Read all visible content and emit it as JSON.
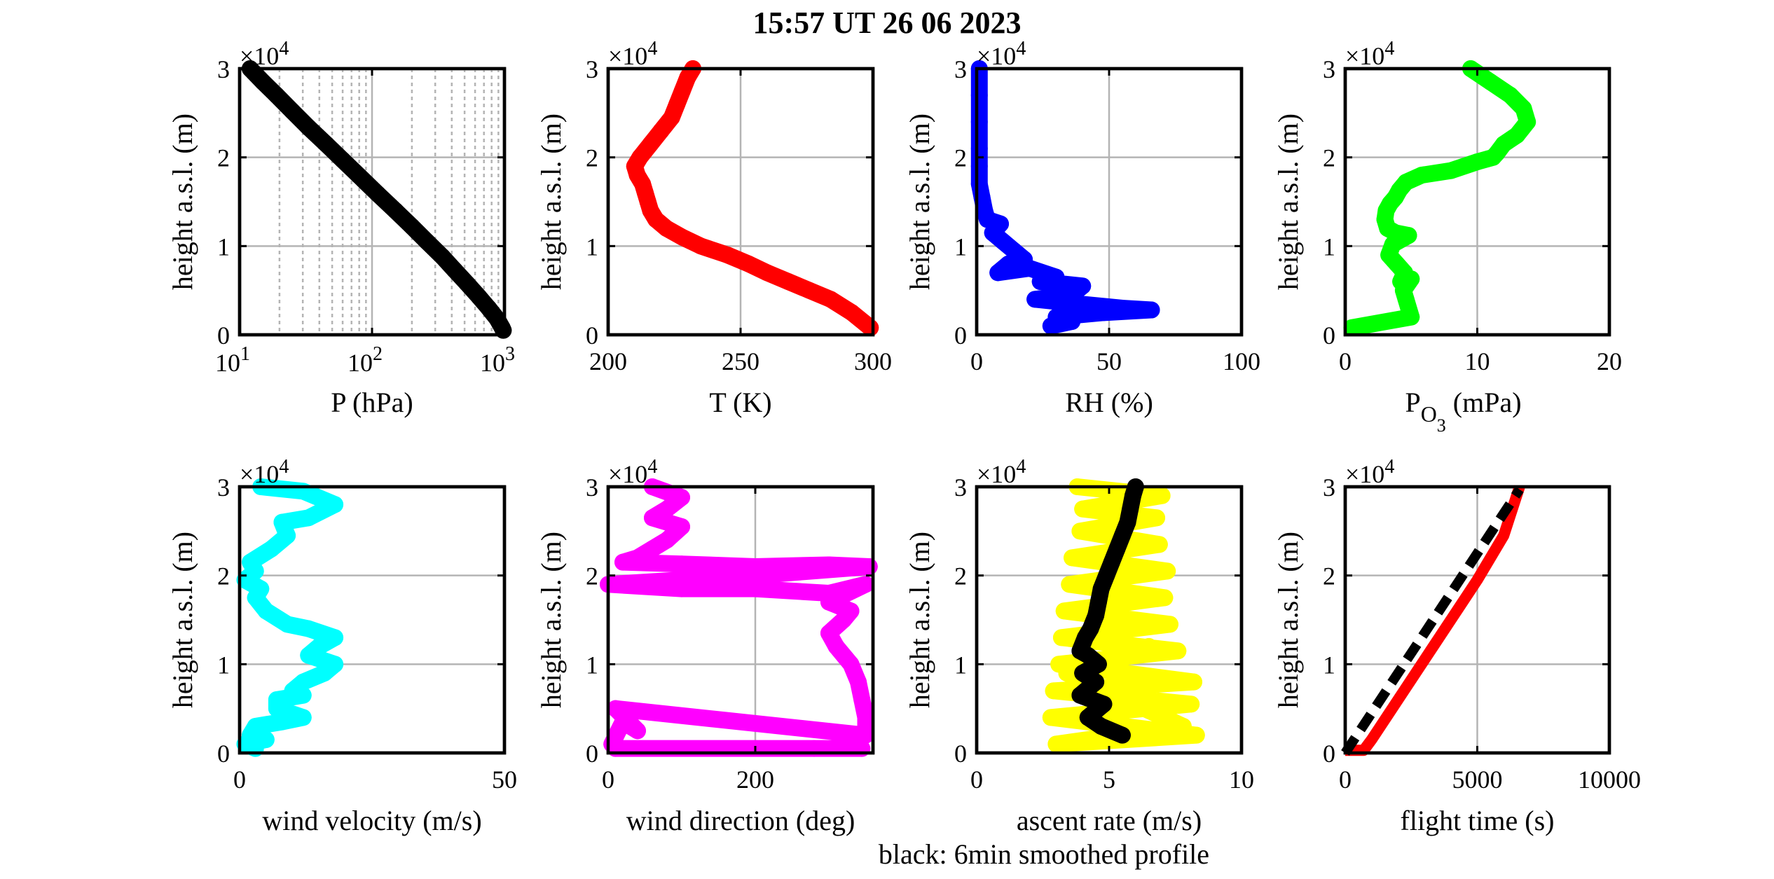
{
  "figure": {
    "title": "15:57 UT  26 06 2023",
    "note": "black: 6min smoothed profile"
  },
  "chart_data": [
    {
      "type": "scatter",
      "name": "pressure-profile",
      "xlabel": "P (hPa)",
      "ylabel": "height a.s.l. (m)",
      "y_exponent": "×10^4",
      "xscale": "log",
      "xlim": [
        10,
        1000
      ],
      "ylim": [
        0,
        30000
      ],
      "xticks": [
        10,
        100,
        1000
      ],
      "xticklabels": [
        {
          "base": "10",
          "exp": "1"
        },
        {
          "base": "10",
          "exp": "2"
        },
        {
          "base": "10",
          "exp": "3"
        }
      ],
      "yticks": [
        0,
        10000,
        20000,
        30000
      ],
      "yticklabels": [
        "0",
        "1",
        "2",
        "3"
      ],
      "grid": true,
      "minor_grid": true,
      "series": [
        {
          "color": "#000000",
          "x": [
            12,
            15,
            19,
            25,
            33,
            45,
            60,
            80,
            110,
            150,
            200,
            260,
            340,
            420,
            520,
            640,
            760,
            880,
            960,
            980
          ],
          "y": [
            30000,
            28500,
            27000,
            25200,
            23400,
            21500,
            19700,
            17900,
            15900,
            14000,
            12200,
            10500,
            8800,
            7300,
            5800,
            4300,
            3000,
            1800,
            800,
            500
          ]
        }
      ]
    },
    {
      "type": "scatter",
      "name": "temperature-profile",
      "xlabel": "T (K)",
      "ylabel": "height a.s.l. (m)",
      "y_exponent": "×10^4",
      "xlim": [
        200,
        300
      ],
      "ylim": [
        0,
        30000
      ],
      "xticks": [
        200,
        250,
        300
      ],
      "xticklabels": [
        "200",
        "250",
        "300"
      ],
      "yticks": [
        0,
        10000,
        20000,
        30000
      ],
      "yticklabels": [
        "0",
        "1",
        "2",
        "3"
      ],
      "grid": true,
      "series": [
        {
          "color": "#ff0000",
          "x": [
            232,
            230,
            228,
            226,
            224,
            220,
            216,
            212,
            210,
            211,
            213,
            214,
            215,
            216,
            218,
            222,
            228,
            235,
            245,
            253,
            260,
            268,
            276,
            284,
            292,
            299
          ],
          "y": [
            30000,
            29000,
            27500,
            26000,
            24500,
            23000,
            21500,
            20000,
            19000,
            18000,
            17000,
            16000,
            15000,
            14000,
            13000,
            12000,
            11000,
            10000,
            9000,
            8000,
            7000,
            6000,
            5000,
            4000,
            2500,
            800
          ]
        }
      ]
    },
    {
      "type": "scatter",
      "name": "humidity-profile",
      "xlabel": "RH (%)",
      "ylabel": "height a.s.l. (m)",
      "y_exponent": "×10^4",
      "xlim": [
        0,
        100
      ],
      "ylim": [
        0,
        30000
      ],
      "xticks": [
        0,
        50,
        100
      ],
      "xticklabels": [
        "0",
        "50",
        "100"
      ],
      "yticks": [
        0,
        10000,
        20000,
        30000
      ],
      "yticklabels": [
        "0",
        "1",
        "2",
        "3"
      ],
      "grid": true,
      "series": [
        {
          "color": "#0000ff",
          "x": [
            1,
            1,
            1,
            1,
            1,
            1,
            2,
            3,
            4,
            9,
            6,
            10,
            14,
            18,
            12,
            8,
            20,
            30,
            24,
            40,
            36,
            22,
            38,
            55,
            66,
            48,
            30,
            36,
            28
          ],
          "y": [
            30000,
            27000,
            24000,
            21000,
            19000,
            17000,
            15500,
            14000,
            13000,
            12500,
            11500,
            10500,
            9500,
            8500,
            8000,
            7000,
            7500,
            6500,
            6000,
            5500,
            4500,
            4000,
            3500,
            3000,
            2800,
            2500,
            2000,
            1500,
            1000
          ]
        }
      ]
    },
    {
      "type": "scatter",
      "name": "ozone-profile",
      "xlabel": "P",
      "xlabel_sub": "O",
      "xlabel_subsub": "3",
      "xlabel_unit": " (mPa)",
      "ylabel": "height a.s.l. (m)",
      "y_exponent": "×10^4",
      "xlim": [
        0,
        20
      ],
      "ylim": [
        0,
        30000
      ],
      "xticks": [
        0,
        10,
        20
      ],
      "xticklabels": [
        "0",
        "10",
        "20"
      ],
      "yticks": [
        0,
        10000,
        20000,
        30000
      ],
      "yticklabels": [
        "0",
        "1",
        "2",
        "3"
      ],
      "grid": true,
      "series": [
        {
          "color": "#00ff00",
          "x": [
            9.5,
            11,
            12.5,
            13.5,
            13.8,
            13,
            12,
            11.5,
            11.2,
            10,
            8,
            5.8,
            4.6,
            4.1,
            3.8,
            3.4,
            3.1,
            3,
            3.2,
            3.8,
            4.8,
            3.6,
            3.3,
            3.9,
            4.5,
            4.2,
            5,
            4.4,
            4.6,
            5,
            0.5
          ],
          "y": [
            30000,
            28500,
            27000,
            25500,
            24000,
            22500,
            21500,
            20500,
            20000,
            19500,
            18500,
            18000,
            17200,
            16300,
            15500,
            14800,
            14000,
            13000,
            12000,
            11500,
            11200,
            10200,
            9000,
            8000,
            7000,
            6000,
            6300,
            5000,
            4000,
            2000,
            800
          ]
        }
      ]
    },
    {
      "type": "scatter",
      "name": "wind-velocity-profile",
      "xlabel": "wind velocity (m/s)",
      "ylabel": "height a.s.l. (m)",
      "y_exponent": "×10^4",
      "xlim": [
        0,
        50
      ],
      "ylim": [
        0,
        30000
      ],
      "xticks": [
        0,
        50
      ],
      "xticklabels": [
        "0",
        "50"
      ],
      "yticks": [
        0,
        10000,
        20000,
        30000
      ],
      "yticklabels": [
        "0",
        "1",
        "2",
        "3"
      ],
      "grid": true,
      "series": [
        {
          "color": "#00ffff",
          "x": [
            4,
            12,
            18,
            13,
            8,
            9,
            6,
            2,
            3,
            1,
            4,
            3,
            5,
            9,
            13,
            18,
            15,
            13,
            18,
            16,
            12,
            10,
            12,
            7,
            7,
            12,
            8,
            3,
            2,
            5,
            1,
            3
          ],
          "y": [
            30000,
            29500,
            28000,
            26500,
            26000,
            24500,
            23000,
            21500,
            20500,
            19500,
            18500,
            17500,
            16000,
            14500,
            14000,
            13000,
            12000,
            11000,
            10000,
            9000,
            8000,
            7000,
            6500,
            6000,
            5000,
            4000,
            3500,
            3000,
            2000,
            1500,
            1000,
            500
          ]
        }
      ]
    },
    {
      "type": "scatter",
      "name": "wind-direction-profile",
      "xlabel": "wind direction (deg)",
      "ylabel": "height a.s.l. (m)",
      "y_exponent": "×10^4",
      "xlim": [
        0,
        360
      ],
      "ylim": [
        0,
        30000
      ],
      "xticks": [
        0,
        200
      ],
      "xticklabels": [
        "0",
        "200"
      ],
      "yticks": [
        0,
        10000,
        20000,
        30000
      ],
      "yticklabels": [
        "0",
        "1",
        "2",
        "3"
      ],
      "grid": true,
      "series": [
        {
          "color": "#ff00ff",
          "x": [
            60,
            100,
            80,
            60,
            100,
            80,
            60,
            40,
            20,
            100,
            200,
            300,
            355,
            200,
            100,
            0,
            100,
            200,
            300,
            350,
            300,
            330,
            320,
            300,
            310,
            330,
            340,
            345,
            350,
            350,
            10,
            40,
            20,
            5,
            10,
            280,
            345
          ],
          "y": [
            30000,
            28800,
            27500,
            26500,
            25500,
            24000,
            23000,
            22000,
            21500,
            21300,
            21000,
            21200,
            21000,
            20000,
            19500,
            19000,
            18500,
            18500,
            18000,
            19000,
            17000,
            16000,
            15000,
            13500,
            12000,
            10000,
            8000,
            6000,
            4000,
            2000,
            5000,
            2500,
            3500,
            1000,
            500,
            500,
            500
          ]
        }
      ]
    },
    {
      "type": "scatter",
      "name": "ascent-rate-profile",
      "xlabel": "ascent rate (m/s)",
      "ylabel": "height a.s.l. (m)",
      "y_exponent": "×10^4",
      "xlim": [
        0,
        10
      ],
      "ylim": [
        0,
        30000
      ],
      "xticks": [
        0,
        5,
        10
      ],
      "xticklabels": [
        "0",
        "5",
        "10"
      ],
      "yticks": [
        0,
        10000,
        20000,
        30000
      ],
      "yticklabels": [
        "0",
        "1",
        "2",
        "3"
      ],
      "grid": true,
      "series": [
        {
          "color": "#ffff00",
          "x": [
            3.8,
            7.0,
            4.0,
            6.8,
            3.9,
            6.9,
            3.6,
            7.2,
            3.5,
            7.1,
            3.3,
            7.3,
            3.2,
            7.6,
            3.1,
            8.2,
            2.9,
            8.1,
            2.8,
            8.3,
            3.0,
            7.8,
            3.4,
            6.5
          ],
          "y": [
            30000,
            29000,
            27500,
            26500,
            25000,
            23500,
            22000,
            20500,
            19000,
            17500,
            16000,
            14500,
            13000,
            11500,
            10000,
            8000,
            7000,
            5500,
            4000,
            2000,
            1000,
            3000,
            9000,
            12000
          ]
        },
        {
          "color": "#000000",
          "x": [
            6.0,
            5.9,
            5.8,
            5.7,
            5.5,
            5.3,
            5.1,
            4.9,
            4.7,
            4.6,
            4.5,
            4.3,
            4.1,
            3.9,
            4.2,
            4.6,
            4.0,
            4.5,
            3.9,
            4.8,
            4.2,
            4.7,
            5.5
          ],
          "y": [
            30000,
            29000,
            27500,
            26000,
            24500,
            23000,
            21500,
            20000,
            18500,
            17000,
            15500,
            14000,
            13000,
            11500,
            11000,
            10000,
            9000,
            8000,
            6500,
            5500,
            4000,
            3000,
            2000
          ]
        }
      ]
    },
    {
      "type": "line",
      "name": "flight-time-profile",
      "xlabel": "flight time (s)",
      "ylabel": "height a.s.l. (m)",
      "y_exponent": "×10^4",
      "xlim": [
        0,
        10000
      ],
      "ylim": [
        0,
        30000
      ],
      "xticks": [
        0,
        5000,
        10000
      ],
      "xticklabels": [
        "0",
        "5000",
        "10000"
      ],
      "yticks": [
        0,
        10000,
        20000,
        30000
      ],
      "yticklabels": [
        "0",
        "1",
        "2",
        "3"
      ],
      "grid": true,
      "series": [
        {
          "color": "#ff0000",
          "dashed": false,
          "x": [
            0,
            700,
            1000,
            2000,
            3000,
            4000,
            5000,
            6000,
            6600
          ],
          "y": [
            300,
            300,
            1500,
            6000,
            10500,
            15000,
            19500,
            24500,
            30000
          ]
        },
        {
          "color": "#000000",
          "dashed": true,
          "x": [
            0,
            1000,
            2000,
            3000,
            4000,
            5000,
            6000,
            6600
          ],
          "y": [
            0,
            4500,
            9000,
            13500,
            18000,
            22500,
            27000,
            29700
          ]
        }
      ]
    }
  ]
}
